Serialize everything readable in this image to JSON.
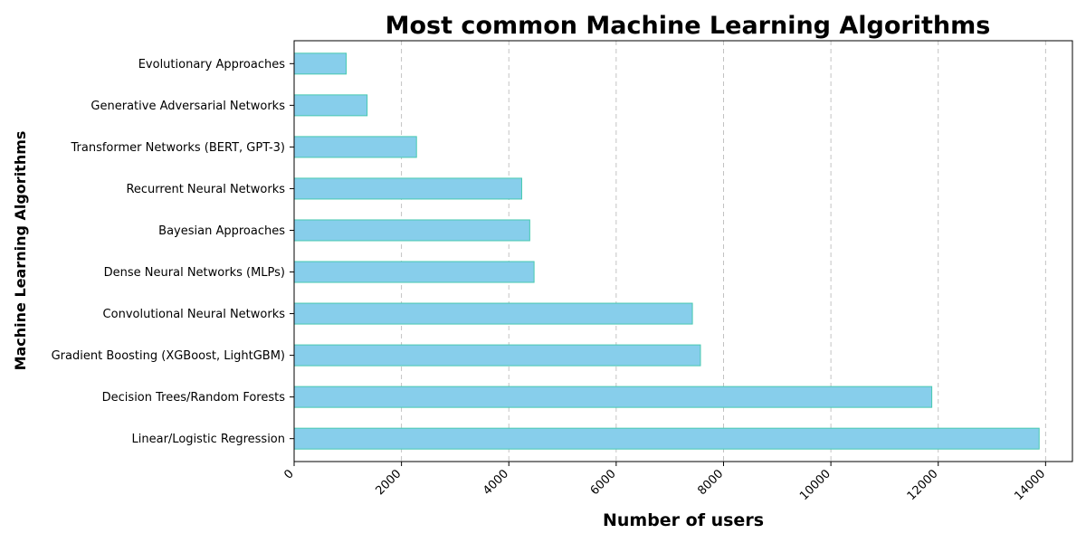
{
  "chart_data": {
    "type": "bar",
    "orientation": "horizontal",
    "title": "Most common Machine Learning Algorithms",
    "xlabel": "Number of users",
    "ylabel": "Machine Learning Algorithms",
    "categories": [
      "Linear/Logistic Regression",
      "Decision Trees/Random Forests",
      "Gradient Boosting (XGBoost, LightGBM)",
      "Convolutional Neural Networks",
      "Dense Neural Networks (MLPs)",
      "Bayesian Approaches",
      "Recurrent Neural Networks",
      "Transformer Networks (BERT, GPT-3)",
      "Generative Adversarial Networks",
      "Evolutionary Approaches"
    ],
    "values": [
      13880,
      11880,
      7570,
      7420,
      4470,
      4390,
      4240,
      2280,
      1360,
      970
    ],
    "xlim": [
      0,
      14500
    ],
    "xticks": [
      0,
      2000,
      4000,
      6000,
      8000,
      10000,
      12000,
      14000
    ],
    "xtick_labels": [
      "0",
      "2000",
      "4000",
      "6000",
      "8000",
      "10000",
      "12000",
      "14000"
    ],
    "xtick_rotation": 45,
    "grid": "x-dashed",
    "legend": "none",
    "colors": {
      "bar_fill": "#87ceeb",
      "bar_edge": "#48c9b0"
    }
  }
}
